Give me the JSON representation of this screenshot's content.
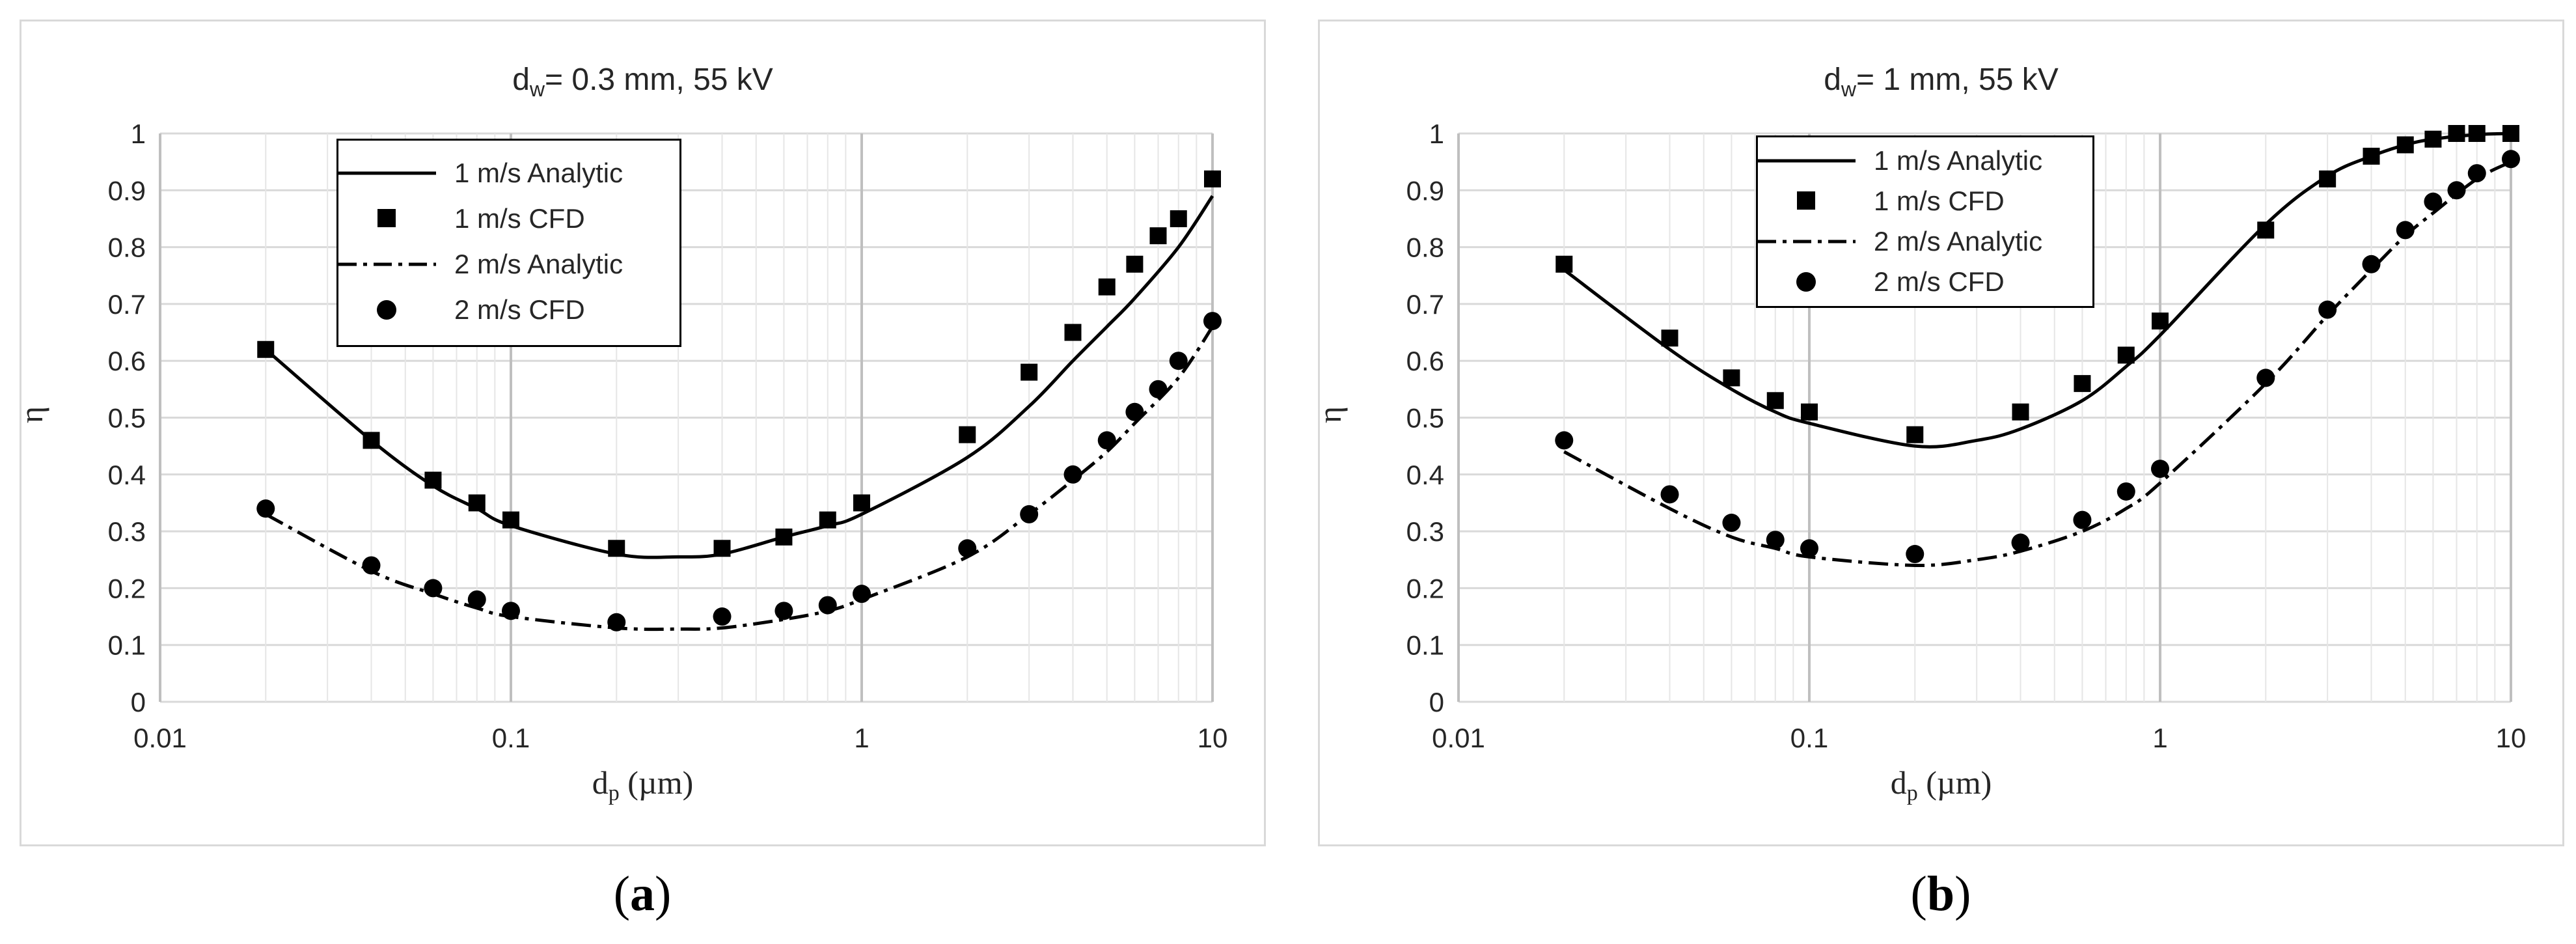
{
  "colors": {
    "line": "#000000",
    "grid": "#d9d9d9",
    "text": "#262626",
    "border": "#d9d9d9"
  },
  "panels": [
    {
      "title_prefix": "d",
      "title_sub": "w",
      "title_rest": "= 0.3 mm, 55 kV",
      "caption_letter": "a",
      "caption_open": "(",
      "caption_close": ")"
    },
    {
      "title_prefix": "d",
      "title_sub": "w",
      "title_rest": "= 1 mm, 55 kV",
      "caption_letter": "b",
      "caption_open": "(",
      "caption_close": ")"
    }
  ],
  "axes": {
    "x_label_main": "d",
    "x_label_sub": "p",
    "x_label_rest": " (µm)",
    "y_label": "η",
    "x_ticks": [
      "0.01",
      "0.1",
      "1",
      "10"
    ],
    "y_ticks": [
      "0",
      "0.1",
      "0.2",
      "0.3",
      "0.4",
      "0.5",
      "0.6",
      "0.7",
      "0.8",
      "0.9",
      "1"
    ]
  },
  "legend": [
    "1 m/s Analytic",
    "1 m/s CFD",
    "2 m/s Analytic",
    "2 m/s CFD"
  ],
  "chart_data": [
    {
      "type": "scatter",
      "title": "dw= 0.3 mm, 55 kV",
      "xlabel": "dp (µm)",
      "ylabel": "η",
      "xscale": "log",
      "xlim": [
        0.01,
        10
      ],
      "ylim": [
        0,
        1
      ],
      "legend_position": "top-left",
      "grid": true,
      "series": [
        {
          "name": "1 m/s Analytic",
          "style": "solid-line",
          "x": [
            0.02,
            0.04,
            0.06,
            0.08,
            0.1,
            0.2,
            0.3,
            0.4,
            0.6,
            0.8,
            1,
            2,
            3,
            4,
            5,
            6,
            8,
            10
          ],
          "y": [
            0.62,
            0.46,
            0.38,
            0.34,
            0.31,
            0.26,
            0.255,
            0.26,
            0.29,
            0.31,
            0.33,
            0.43,
            0.52,
            0.6,
            0.66,
            0.71,
            0.8,
            0.89
          ]
        },
        {
          "name": "1 m/s CFD",
          "style": "square-marker",
          "x": [
            0.02,
            0.04,
            0.06,
            0.08,
            0.1,
            0.2,
            0.4,
            0.6,
            0.8,
            1,
            2,
            3,
            4,
            5,
            6,
            7,
            8,
            10
          ],
          "y": [
            0.62,
            0.46,
            0.39,
            0.35,
            0.32,
            0.27,
            0.27,
            0.29,
            0.32,
            0.35,
            0.47,
            0.58,
            0.65,
            0.73,
            0.77,
            0.82,
            0.85,
            0.92
          ]
        },
        {
          "name": "2 m/s Analytic",
          "style": "dash-dot-line",
          "x": [
            0.02,
            0.04,
            0.06,
            0.08,
            0.1,
            0.2,
            0.3,
            0.4,
            0.6,
            0.8,
            1,
            2,
            3,
            4,
            5,
            6,
            8,
            10
          ],
          "y": [
            0.33,
            0.23,
            0.19,
            0.165,
            0.15,
            0.13,
            0.128,
            0.13,
            0.145,
            0.16,
            0.18,
            0.255,
            0.33,
            0.39,
            0.44,
            0.49,
            0.57,
            0.66
          ]
        },
        {
          "name": "2 m/s CFD",
          "style": "circle-marker",
          "x": [
            0.02,
            0.04,
            0.06,
            0.08,
            0.1,
            0.2,
            0.4,
            0.6,
            0.8,
            1,
            2,
            3,
            4,
            5,
            6,
            7,
            8,
            10
          ],
          "y": [
            0.34,
            0.24,
            0.2,
            0.18,
            0.16,
            0.14,
            0.15,
            0.16,
            0.17,
            0.19,
            0.27,
            0.33,
            0.4,
            0.46,
            0.51,
            0.55,
            0.6,
            0.67
          ]
        }
      ]
    },
    {
      "type": "scatter",
      "title": "dw= 1 mm, 55 kV",
      "xlabel": "dp (µm)",
      "ylabel": "η",
      "xscale": "log",
      "xlim": [
        0.01,
        10
      ],
      "ylim": [
        0,
        1
      ],
      "legend_position": "top-left",
      "grid": true,
      "series": [
        {
          "name": "1 m/s Analytic",
          "style": "solid-line",
          "x": [
            0.02,
            0.04,
            0.06,
            0.08,
            0.1,
            0.2,
            0.3,
            0.4,
            0.6,
            0.8,
            1,
            2,
            3,
            4,
            5,
            6,
            8,
            10
          ],
          "y": [
            0.76,
            0.62,
            0.55,
            0.51,
            0.49,
            0.45,
            0.46,
            0.48,
            0.53,
            0.59,
            0.645,
            0.84,
            0.925,
            0.96,
            0.98,
            0.99,
            0.998,
            1.0
          ]
        },
        {
          "name": "1 m/s CFD",
          "style": "square-marker",
          "x": [
            0.02,
            0.04,
            0.06,
            0.08,
            0.1,
            0.2,
            0.4,
            0.6,
            0.8,
            1,
            2,
            3,
            4,
            5,
            6,
            7,
            8,
            10
          ],
          "y": [
            0.77,
            0.64,
            0.57,
            0.53,
            0.51,
            0.47,
            0.51,
            0.56,
            0.61,
            0.67,
            0.83,
            0.92,
            0.96,
            0.98,
            0.99,
            1.0,
            1.0,
            1.0
          ]
        },
        {
          "name": "2 m/s Analytic",
          "style": "dash-dot-line",
          "x": [
            0.02,
            0.04,
            0.06,
            0.08,
            0.1,
            0.2,
            0.3,
            0.4,
            0.6,
            0.8,
            1,
            2,
            3,
            4,
            5,
            6,
            8,
            10
          ],
          "y": [
            0.44,
            0.34,
            0.29,
            0.27,
            0.255,
            0.24,
            0.25,
            0.265,
            0.3,
            0.34,
            0.385,
            0.56,
            0.68,
            0.76,
            0.82,
            0.86,
            0.92,
            0.95
          ]
        },
        {
          "name": "2 m/s CFD",
          "style": "circle-marker",
          "x": [
            0.02,
            0.04,
            0.06,
            0.08,
            0.1,
            0.2,
            0.4,
            0.6,
            0.8,
            1,
            2,
            3,
            4,
            5,
            6,
            7,
            8,
            10
          ],
          "y": [
            0.46,
            0.365,
            0.315,
            0.285,
            0.27,
            0.26,
            0.28,
            0.32,
            0.37,
            0.41,
            0.57,
            0.69,
            0.77,
            0.83,
            0.88,
            0.9,
            0.93,
            0.955
          ]
        }
      ]
    }
  ]
}
